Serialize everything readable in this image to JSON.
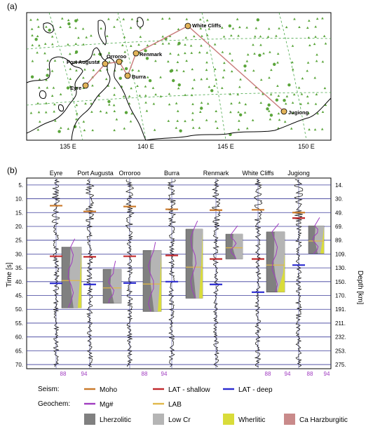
{
  "panel_a": {
    "label": "(a)",
    "lon_ticks": [
      {
        "value": 135,
        "label": "135 E"
      },
      {
        "value": 140,
        "label": "140 E"
      },
      {
        "value": 145,
        "label": "145 E"
      },
      {
        "value": 150,
        "label": "150 E"
      }
    ],
    "sites": [
      {
        "name": "Eyre",
        "lon": 136.2
      },
      {
        "name": "Port Augusta",
        "lon": 137.6
      },
      {
        "name": "Orroroo",
        "lon": 138.4
      },
      {
        "name": "Burra",
        "lon": 138.9
      },
      {
        "name": "Renmark",
        "lon": 139.7
      },
      {
        "name": "White Cliffs",
        "lon": 143.0
      },
      {
        "name": "Jugiong",
        "lon": 148.3
      }
    ],
    "colors": {
      "site_marker": "#e2b35a",
      "profile_line": "#c97b7b",
      "grid": "#4aa84a",
      "stations": "#5aa53a",
      "coast": "#000000"
    }
  },
  "panel_b": {
    "label": "(b)",
    "y_left_label": "Time [s]",
    "y_right_label": "Depth [km]",
    "time_ticks": [
      "5.",
      "10.",
      "15.",
      "20.",
      "25.",
      "30.",
      "35.",
      "40.",
      "45.",
      "50.",
      "55.",
      "60.",
      "65.",
      "70."
    ],
    "depth_ticks": [
      "14.",
      "30.",
      "49.",
      "69.",
      "89.",
      "109.",
      "130.",
      "150.",
      "170.",
      "191.",
      "211.",
      "232.",
      "253.",
      "275."
    ],
    "mg_axis": {
      "low": "88",
      "high": "94"
    },
    "stations": [
      {
        "name": "Eyre",
        "moho": 12.5,
        "lat_shallow": 30.8,
        "lat_deep": 40.6,
        "box": [
          27.5,
          49.5
        ],
        "mg_ticks": true
      },
      {
        "name": "Port Augusta",
        "moho": 14.6,
        "lat_shallow": 31.0,
        "lat_deep": 41.0,
        "box": [
          35.5,
          47.8
        ],
        "mg_ticks": false
      },
      {
        "name": "Orroroo",
        "moho": 12.8,
        "lat_shallow": 30.8,
        "lat_deep": 40.5,
        "box": [
          28.7,
          50.8
        ],
        "mg_ticks": true
      },
      {
        "name": "Burra",
        "moho": 13.8,
        "lat_shallow": 30.5,
        "lat_deep": 40.0,
        "box": [
          21.0,
          46.0
        ],
        "mg_ticks": false
      },
      {
        "name": "Renmark",
        "moho": 14.1,
        "lat_shallow": 31.8,
        "lat_deep": 41.0,
        "box": [
          22.8,
          31.8
        ],
        "mg_ticks": false
      },
      {
        "name": "White Cliffs",
        "moho": 14.0,
        "lat_shallow": 31.8,
        "lat_deep": 43.8,
        "box": [
          22.0,
          43.8
        ],
        "mg_ticks": true
      },
      {
        "name": "Jugiong",
        "moho": 15.0,
        "lat_shallow": 17.0,
        "lat_deep": 34.0,
        "box": [
          19.8,
          29.8
        ],
        "mg_ticks": true
      }
    ]
  },
  "legend": {
    "seism_label": "Seism:",
    "geochem_label": "Geochem:",
    "items": [
      {
        "label": "Moho",
        "kind": "line",
        "color": "#c9792a"
      },
      {
        "label": "LAT - shallow",
        "kind": "line",
        "color": "#c0282c"
      },
      {
        "label": "LAT - deep",
        "kind": "line",
        "color": "#2a2ad0"
      },
      {
        "label": "Mg#",
        "kind": "line",
        "color": "#a03cc0"
      },
      {
        "label": "LAB",
        "kind": "line",
        "color": "#e0b84a"
      },
      {
        "label": "Lherzolitic",
        "kind": "patch",
        "color": "#808080"
      },
      {
        "label": "Low Cr",
        "kind": "patch",
        "color": "#b5b5b5"
      },
      {
        "label": "Wherlitic",
        "kind": "patch",
        "color": "#d9dc3a"
      },
      {
        "label": "Ca Harzburgitic",
        "kind": "patch",
        "color": "#c98a8a"
      }
    ]
  }
}
